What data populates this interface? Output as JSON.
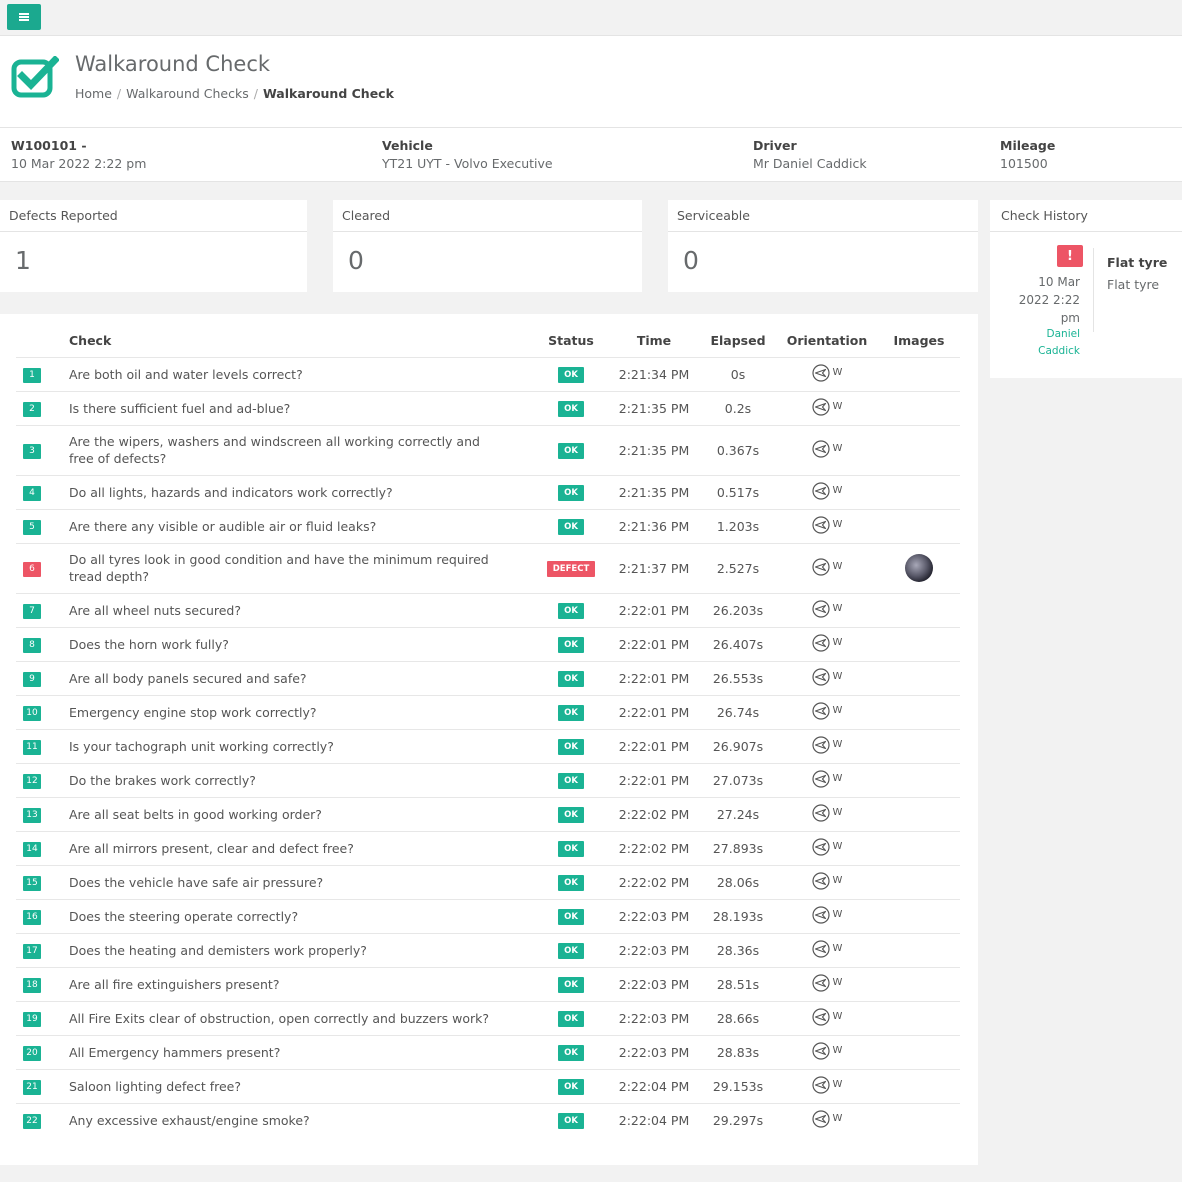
{
  "header": {
    "title": "Walkaround Check",
    "breadcrumb": {
      "home": "Home",
      "section": "Walkaround Checks",
      "current": "Walkaround Check"
    }
  },
  "info": {
    "ref": "W100101 -",
    "datetime": "10 Mar 2022 2:22 pm",
    "vehicle_label": "Vehicle",
    "vehicle": "YT21 UYT - Volvo Executive",
    "driver_label": "Driver",
    "driver": "Mr Daniel Caddick",
    "mileage_label": "Mileage",
    "mileage": "101500"
  },
  "stats": {
    "defects_label": "Defects Reported",
    "defects": "1",
    "cleared_label": "Cleared",
    "cleared": "0",
    "serviceable_label": "Serviceable",
    "serviceable": "0"
  },
  "history": {
    "title": "Check History",
    "badge": "!",
    "date_line1": "10 Mar",
    "date_line2": "2022 2:22",
    "date_line3": "pm",
    "user_line1": "Daniel",
    "user_line2": "Caddick",
    "entry_title": "Flat tyre",
    "entry_desc": "Flat tyre"
  },
  "table": {
    "headers": {
      "check": "Check",
      "status": "Status",
      "time": "Time",
      "elapsed": "Elapsed",
      "orientation": "Orientation",
      "images": "Images"
    },
    "rows": [
      {
        "num": "1",
        "question": "Are both oil and water levels correct?",
        "status": "OK",
        "time": "2:21:34 PM",
        "elapsed": "0s",
        "orientation": "W"
      },
      {
        "num": "2",
        "question": "Is there sufficient fuel and ad-blue?",
        "status": "OK",
        "time": "2:21:35 PM",
        "elapsed": "0.2s",
        "orientation": "W"
      },
      {
        "num": "3",
        "question": "Are the wipers, washers and windscreen all working correctly and free of defects?",
        "status": "OK",
        "time": "2:21:35 PM",
        "elapsed": "0.367s",
        "orientation": "W"
      },
      {
        "num": "4",
        "question": "Do all lights, hazards and indicators work correctly?",
        "status": "OK",
        "time": "2:21:35 PM",
        "elapsed": "0.517s",
        "orientation": "W"
      },
      {
        "num": "5",
        "question": "Are there any visible or audible air or fluid leaks?",
        "status": "OK",
        "time": "2:21:36 PM",
        "elapsed": "1.203s",
        "orientation": "W"
      },
      {
        "num": "6",
        "question": "Do all tyres look in good condition and have the minimum required tread depth?",
        "status": "DEFECT",
        "time": "2:21:37 PM",
        "elapsed": "2.527s",
        "orientation": "W",
        "defect": true,
        "image": true
      },
      {
        "num": "7",
        "question": "Are all wheel nuts secured?",
        "status": "OK",
        "time": "2:22:01 PM",
        "elapsed": "26.203s",
        "orientation": "W"
      },
      {
        "num": "8",
        "question": "Does the horn work fully?",
        "status": "OK",
        "time": "2:22:01 PM",
        "elapsed": "26.407s",
        "orientation": "W"
      },
      {
        "num": "9",
        "question": "Are all body panels secured and safe?",
        "status": "OK",
        "time": "2:22:01 PM",
        "elapsed": "26.553s",
        "orientation": "W"
      },
      {
        "num": "10",
        "question": "Emergency engine stop work correctly?",
        "status": "OK",
        "time": "2:22:01 PM",
        "elapsed": "26.74s",
        "orientation": "W"
      },
      {
        "num": "11",
        "question": "Is your tachograph unit working correctly?",
        "status": "OK",
        "time": "2:22:01 PM",
        "elapsed": "26.907s",
        "orientation": "W"
      },
      {
        "num": "12",
        "question": "Do the brakes work correctly?",
        "status": "OK",
        "time": "2:22:01 PM",
        "elapsed": "27.073s",
        "orientation": "W"
      },
      {
        "num": "13",
        "question": "Are all seat belts in good working order?",
        "status": "OK",
        "time": "2:22:02 PM",
        "elapsed": "27.24s",
        "orientation": "W"
      },
      {
        "num": "14",
        "question": "Are all mirrors present, clear and defect free?",
        "status": "OK",
        "time": "2:22:02 PM",
        "elapsed": "27.893s",
        "orientation": "W"
      },
      {
        "num": "15",
        "question": "Does the vehicle have safe air pressure?",
        "status": "OK",
        "time": "2:22:02 PM",
        "elapsed": "28.06s",
        "orientation": "W"
      },
      {
        "num": "16",
        "question": "Does the steering operate correctly?",
        "status": "OK",
        "time": "2:22:03 PM",
        "elapsed": "28.193s",
        "orientation": "W"
      },
      {
        "num": "17",
        "question": "Does the heating and demisters work properly?",
        "status": "OK",
        "time": "2:22:03 PM",
        "elapsed": "28.36s",
        "orientation": "W"
      },
      {
        "num": "18",
        "question": "Are all fire extinguishers present?",
        "status": "OK",
        "time": "2:22:03 PM",
        "elapsed": "28.51s",
        "orientation": "W"
      },
      {
        "num": "19",
        "question": "All Fire Exits clear of obstruction, open correctly and buzzers work?",
        "status": "OK",
        "time": "2:22:03 PM",
        "elapsed": "28.66s",
        "orientation": "W"
      },
      {
        "num": "20",
        "question": "All Emergency hammers present?",
        "status": "OK",
        "time": "2:22:03 PM",
        "elapsed": "28.83s",
        "orientation": "W"
      },
      {
        "num": "21",
        "question": "Saloon lighting defect free?",
        "status": "OK",
        "time": "2:22:04 PM",
        "elapsed": "29.153s",
        "orientation": "W"
      },
      {
        "num": "22",
        "question": "Any excessive exhaust/engine smoke?",
        "status": "OK",
        "time": "2:22:04 PM",
        "elapsed": "29.297s",
        "orientation": "W"
      }
    ]
  },
  "colors": {
    "accent": "#1ab394",
    "defect": "#ed5565",
    "menu": "#1ba98f"
  },
  "icons": {
    "menu": "hamburger-icon",
    "logo": "checkbox-check-icon",
    "orientation": "compass-west-icon",
    "alert": "exclamation-icon"
  }
}
